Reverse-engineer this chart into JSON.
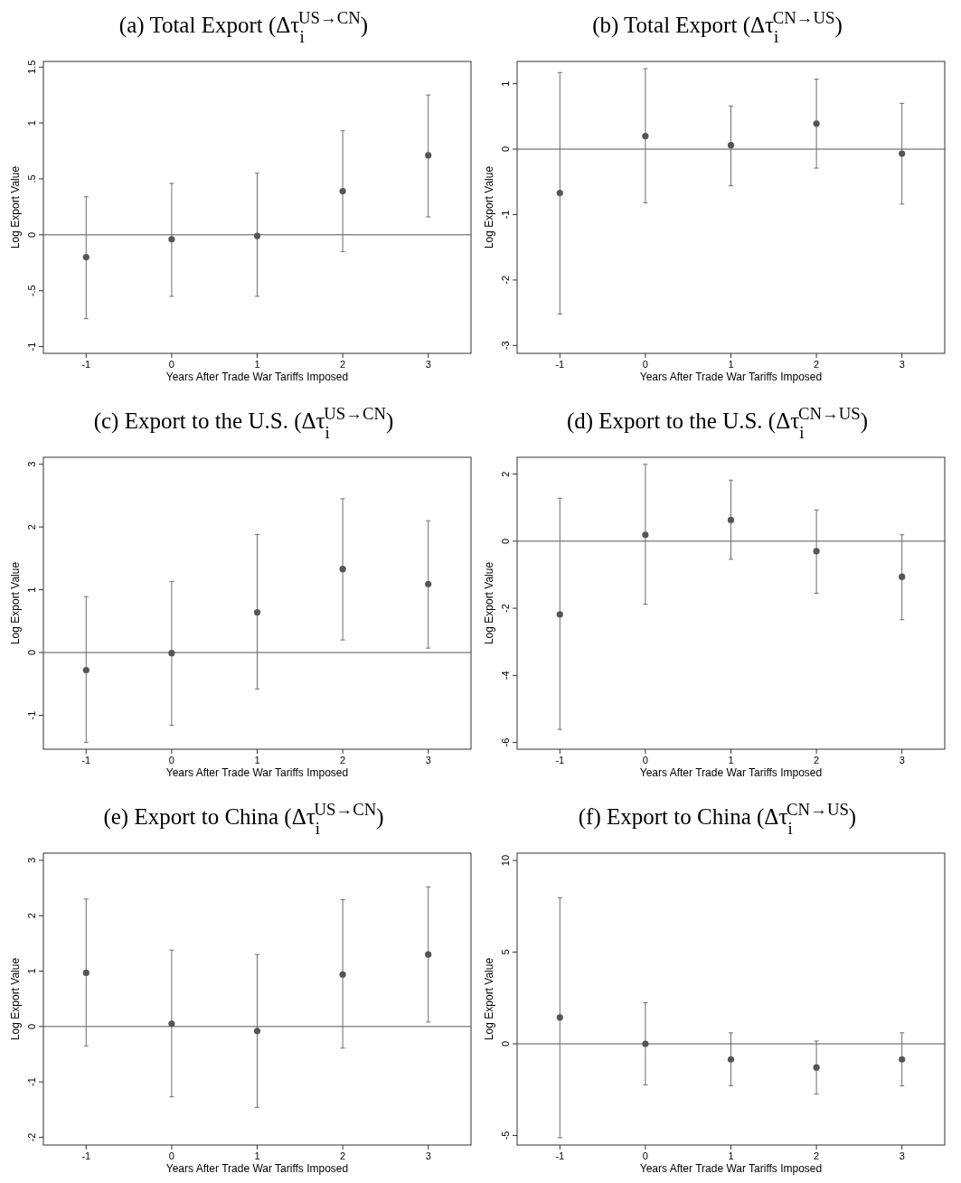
{
  "chart_data": [
    {
      "type": "scatter",
      "title": "(a) Total Export (Δτ$_{i}$$^{US→CN}$)",
      "xlabel": "Years After Trade War Tariffs Imposed",
      "ylabel": "Log Export Value",
      "x": [
        -1,
        0,
        1,
        2,
        3
      ],
      "xlim": [
        -1.5,
        3.5
      ],
      "xticks": [
        -1,
        0,
        1,
        2,
        3
      ],
      "ylim": [
        -1.06,
        1.55
      ],
      "yticks": [
        -1,
        {
          "value": -0.5,
          "label": "-.5"
        },
        0,
        {
          "value": 0.5,
          "label": ".5"
        },
        1,
        1.5
      ],
      "marker": "circle",
      "ref_lines": [
        {
          "axis": "y",
          "value": 0,
          "color": "#555555"
        }
      ],
      "series": [
        {
          "color": "#555555",
          "values": [
            -0.2,
            -0.04,
            -0.01,
            0.39,
            0.71
          ],
          "errors": [
            [
              -0.75,
              0.34
            ],
            [
              -0.55,
              0.46
            ],
            [
              -0.55,
              0.55
            ],
            [
              -0.15,
              0.93
            ],
            [
              0.16,
              1.25
            ]
          ]
        }
      ]
    },
    {
      "type": "scatter",
      "title": "(b) Total Export (Δτ$_{i}$$^{CN→US}$)",
      "xlabel": "Years After Trade War Tariffs Imposed",
      "ylabel": "Log Export Value",
      "x": [
        -1,
        0,
        1,
        2,
        3
      ],
      "xlim": [
        -1.5,
        3.5
      ],
      "xticks": [
        -1,
        0,
        1,
        2,
        3
      ],
      "ylim": [
        -3.12,
        1.34
      ],
      "yticks": [
        -3,
        -2,
        -1,
        0,
        1
      ],
      "marker": "circle",
      "ref_lines": [
        {
          "axis": "y",
          "value": 0,
          "color": "#555555"
        }
      ],
      "series": [
        {
          "color": "#555555",
          "values": [
            -0.67,
            0.2,
            0.06,
            0.39,
            -0.07
          ],
          "errors": [
            [
              -2.52,
              1.17
            ],
            [
              -0.82,
              1.23
            ],
            [
              -0.56,
              0.66
            ],
            [
              -0.29,
              1.07
            ],
            [
              -0.84,
              0.7
            ]
          ]
        }
      ]
    },
    {
      "type": "scatter",
      "title": "(c) Export to the U.S. (Δτ$_{i}$$^{US→CN}$)",
      "xlabel": "Years After Trade War Tariffs Imposed",
      "ylabel": "Log Export Value",
      "x": [
        -1,
        0,
        1,
        2,
        3
      ],
      "xlim": [
        -1.5,
        3.5
      ],
      "xticks": [
        -1,
        0,
        1,
        2,
        3
      ],
      "ylim": [
        -1.54,
        3.11
      ],
      "yticks": [
        -1,
        0,
        1,
        2,
        3
      ],
      "marker": "circle",
      "ref_lines": [
        {
          "axis": "y",
          "value": 0,
          "color": "#555555"
        }
      ],
      "series": [
        {
          "color": "#555555",
          "values": [
            -0.28,
            -0.01,
            0.64,
            1.33,
            1.09
          ],
          "errors": [
            [
              -1.43,
              0.89
            ],
            [
              -1.16,
              1.13
            ],
            [
              -0.58,
              1.88
            ],
            [
              0.2,
              2.45
            ],
            [
              0.07,
              2.1
            ]
          ]
        }
      ]
    },
    {
      "type": "scatter",
      "title": "(d) Export to the U.S. (Δτ$_{i}$$^{CN→US}$)",
      "xlabel": "Years After Trade War Tariffs Imposed",
      "ylabel": "Log Export Value",
      "x": [
        -1,
        0,
        1,
        2,
        3
      ],
      "xlim": [
        -1.5,
        3.5
      ],
      "xticks": [
        -1,
        0,
        1,
        2,
        3
      ],
      "ylim": [
        -6.2,
        2.5
      ],
      "yticks": [
        -6,
        -4,
        -2,
        0,
        2
      ],
      "marker": "circle",
      "ref_lines": [
        {
          "axis": "y",
          "value": 0,
          "color": "#555555"
        }
      ],
      "series": [
        {
          "color": "#555555",
          "values": [
            -2.18,
            0.19,
            0.63,
            -0.3,
            -1.06
          ],
          "errors": [
            [
              -5.61,
              1.28
            ],
            [
              -1.88,
              2.29
            ],
            [
              -0.54,
              1.82
            ],
            [
              -1.55,
              0.93
            ],
            [
              -2.34,
              0.19
            ]
          ]
        }
      ]
    },
    {
      "type": "scatter",
      "title": "(e) Export to China (Δτ$_{i}$$^{US→CN}$)",
      "xlabel": "Years After Trade War Tariffs Imposed",
      "ylabel": "Log Export Value",
      "x": [
        -1,
        0,
        1,
        2,
        3
      ],
      "xlim": [
        -1.5,
        3.5
      ],
      "xticks": [
        -1,
        0,
        1,
        2,
        3
      ],
      "ylim": [
        -2.14,
        3.13
      ],
      "yticks": [
        -2,
        -1,
        0,
        1,
        2,
        3
      ],
      "marker": "circle",
      "ref_lines": [
        {
          "axis": "y",
          "value": 0,
          "color": "#555555"
        }
      ],
      "series": [
        {
          "color": "#555555",
          "values": [
            0.97,
            0.05,
            -0.08,
            0.94,
            1.3
          ],
          "errors": [
            [
              -0.35,
              2.3
            ],
            [
              -1.27,
              1.38
            ],
            [
              -1.46,
              1.3
            ],
            [
              -0.39,
              2.29
            ],
            [
              0.08,
              2.52
            ]
          ]
        }
      ]
    },
    {
      "type": "scatter",
      "title": "(f) Export to China (Δτ$_{i}$$^{CN→US}$)",
      "xlabel": "Years After Trade War Tariffs Imposed",
      "ylabel": "Log Export Value",
      "x": [
        -1,
        0,
        1,
        2,
        3
      ],
      "xlim": [
        -1.5,
        3.5
      ],
      "xticks": [
        -1,
        0,
        1,
        2,
        3
      ],
      "ylim": [
        -5.52,
        10.4
      ],
      "yticks": [
        -5,
        0,
        5,
        10
      ],
      "marker": "circle",
      "ref_lines": [
        {
          "axis": "y",
          "value": 0,
          "color": "#555555"
        }
      ],
      "series": [
        {
          "color": "#555555",
          "values": [
            1.44,
            0,
            -0.85,
            -1.29,
            -0.85
          ],
          "errors": [
            [
              -5.12,
              7.96
            ],
            [
              -2.24,
              2.24
            ],
            [
              -2.29,
              0.6
            ],
            [
              -2.74,
              0.15
            ],
            [
              -2.29,
              0.6
            ]
          ]
        }
      ]
    }
  ]
}
